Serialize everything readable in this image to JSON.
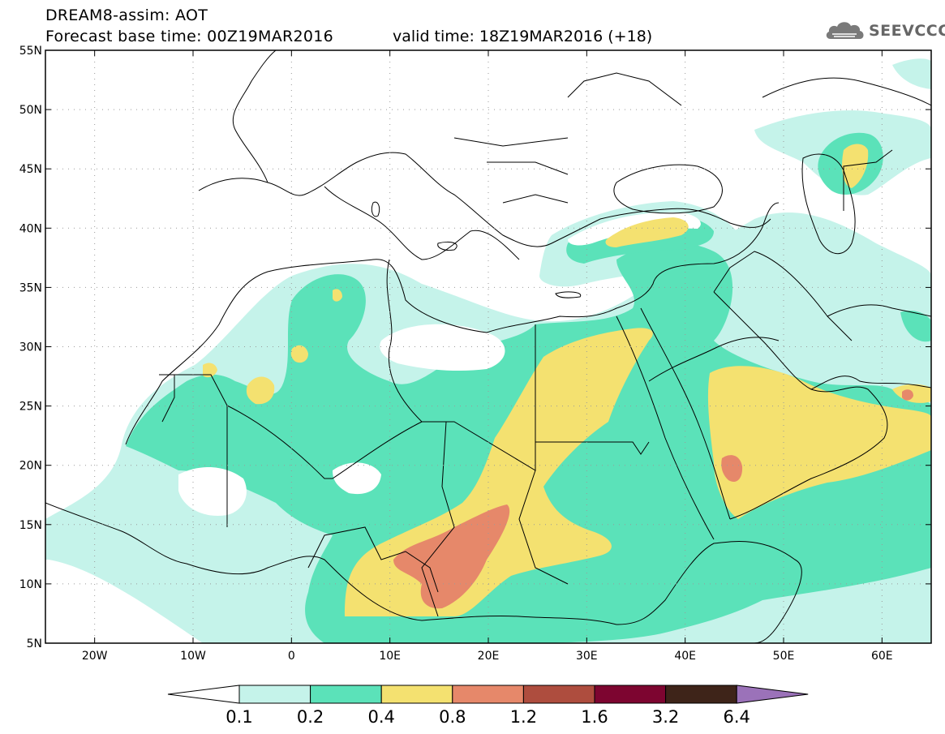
{
  "header": {
    "title_line1": "DREAM8-assim: AOT",
    "title_line2": "Forecast base time: 00Z19MAR2016",
    "valid_time": "valid time: 18Z19MAR2016 (+18)",
    "logo_text": "SEEVCCC",
    "logo_icon": "cloud-icon"
  },
  "map": {
    "projection": "equirectangular",
    "lon_range": [
      -25,
      65
    ],
    "lat_range": [
      5,
      55
    ],
    "lon_ticks": [
      {
        "lon": -20,
        "label": "20W"
      },
      {
        "lon": -10,
        "label": "10W"
      },
      {
        "lon": 0,
        "label": "0"
      },
      {
        "lon": 10,
        "label": "10E"
      },
      {
        "lon": 20,
        "label": "20E"
      },
      {
        "lon": 30,
        "label": "30E"
      },
      {
        "lon": 40,
        "label": "40E"
      },
      {
        "lon": 50,
        "label": "50E"
      },
      {
        "lon": 60,
        "label": "60E"
      }
    ],
    "lat_ticks": [
      {
        "lat": 55,
        "label": "55N"
      },
      {
        "lat": 50,
        "label": "50N"
      },
      {
        "lat": 45,
        "label": "45N"
      },
      {
        "lat": 40,
        "label": "40N"
      },
      {
        "lat": 35,
        "label": "35N"
      },
      {
        "lat": 30,
        "label": "30N"
      },
      {
        "lat": 25,
        "label": "25N"
      },
      {
        "lat": 20,
        "label": "20N"
      },
      {
        "lat": 15,
        "label": "15N"
      },
      {
        "lat": 10,
        "label": "10N"
      },
      {
        "lat": 5,
        "label": "5N"
      }
    ],
    "grid": "dotted"
  },
  "colorbar": {
    "levels": [
      "0.1",
      "0.2",
      "0.4",
      "0.8",
      "1.2",
      "1.6",
      "3.2",
      "6.4"
    ],
    "colors": {
      "below": "#ffffff",
      "bins": [
        "#c5f3ea",
        "#5be2b9",
        "#f4e170",
        "#e6886a",
        "#ae4d3e",
        "#7d0530",
        "#3e2419"
      ],
      "above": "#9b72b9"
    }
  }
}
